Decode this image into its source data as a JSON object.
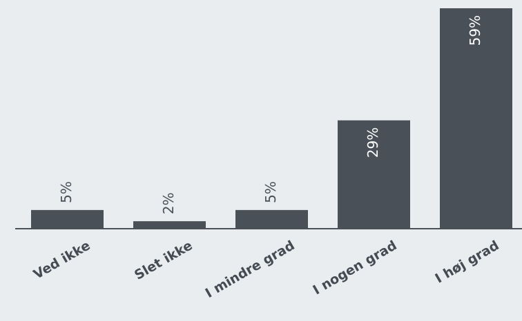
{
  "chart_data": {
    "type": "bar",
    "categories": [
      "Ved ikke",
      "Slet ikke",
      "I mindre grad",
      "I nogen grad",
      "I høj grad"
    ],
    "values": [
      5,
      2,
      5,
      29,
      59
    ],
    "value_labels": [
      "5%",
      "2%",
      "5%",
      "29%",
      "59%"
    ],
    "ylim": [
      0,
      59
    ],
    "grid": false,
    "legend": "none",
    "colors": {
      "bar": "#4a5058",
      "background": "#e9edf0",
      "label_outside": "#4a5058",
      "label_inside": "#ffffff"
    }
  }
}
